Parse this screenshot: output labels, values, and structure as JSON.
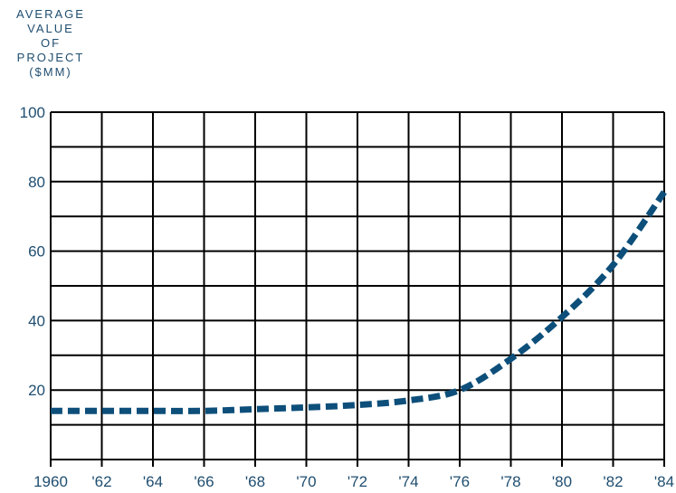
{
  "chart_data": {
    "type": "line",
    "title": "",
    "ylabel_lines": [
      "AVERAGE",
      "VALUE",
      "OF",
      "PROJECT",
      "($MM)"
    ],
    "xlabel": "",
    "x": [
      1960,
      1962,
      1964,
      1966,
      1968,
      1970,
      1972,
      1974,
      1976,
      1978,
      1980,
      1982,
      1984
    ],
    "x_tick_labels": [
      "1960",
      "'62",
      "'64",
      "'66",
      "'68",
      "'70",
      "'72",
      "'74",
      "'76",
      "'78",
      "'80",
      "'82",
      "'84"
    ],
    "y_tick_values": [
      20,
      40,
      60,
      80,
      100
    ],
    "y_tick_labels": [
      "20",
      "40",
      "60",
      "80",
      "100"
    ],
    "xlim": [
      1960,
      1984
    ],
    "ylim": [
      0,
      100
    ],
    "grid": true,
    "series": [
      {
        "style": "dashed",
        "color": "#0d4f7a",
        "x": [
          1960,
          1962,
          1964,
          1966,
          1968,
          1970,
          1972,
          1974,
          1976,
          1978,
          1980,
          1982,
          1984
        ],
        "values": [
          14,
          14,
          14,
          14,
          14.5,
          15,
          15.7,
          17,
          20,
          29,
          41,
          56,
          77
        ]
      }
    ],
    "colors": {
      "grid": "#000000",
      "ticks": "#1f4e70",
      "line": "#0d4f7a"
    }
  }
}
